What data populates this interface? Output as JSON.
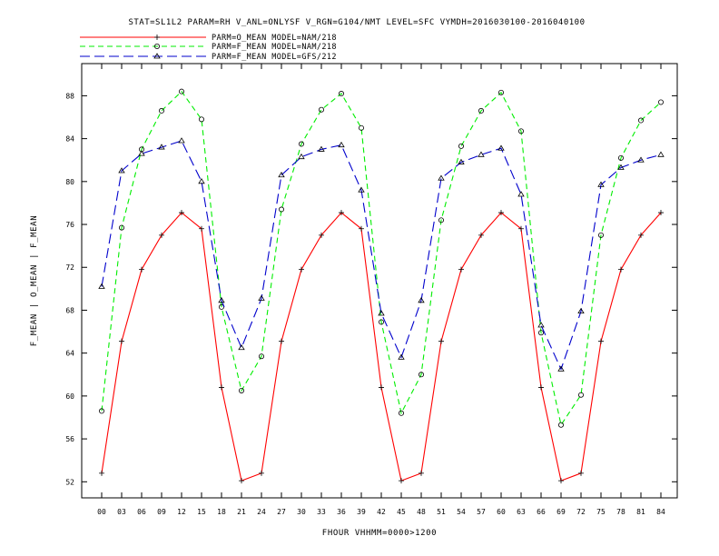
{
  "chart_data": {
    "type": "line",
    "title": "STAT=SL1L2 PARAM=RH V_ANL=ONLYSF V_RGN=G104/NMT LEVEL=SFC VYMDH=2016030100-2016040100",
    "xlabel": "FHOUR VHHMM=0000>1200",
    "ylabel": "F_MEAN | O_MEAN | F_MEAN",
    "x": [
      "00",
      "03",
      "06",
      "09",
      "12",
      "15",
      "18",
      "21",
      "24",
      "27",
      "30",
      "33",
      "36",
      "39",
      "42",
      "45",
      "48",
      "51",
      "54",
      "57",
      "60",
      "63",
      "66",
      "69",
      "72",
      "75",
      "78",
      "81",
      "84"
    ],
    "ylim": [
      50.5,
      91
    ],
    "yticks": [
      52,
      56,
      60,
      64,
      68,
      72,
      76,
      80,
      84,
      88
    ],
    "legend_position": "top-left",
    "grid": false,
    "series": [
      {
        "name": "PARM=O_MEAN MODEL=NAM/218",
        "color": "#ff0000",
        "dash": "solid",
        "marker": "plus",
        "values": [
          52.8,
          65.1,
          71.8,
          75.0,
          77.1,
          75.6,
          60.8,
          52.1,
          52.8,
          65.1,
          71.8,
          75.0,
          77.1,
          75.6,
          60.8,
          52.1,
          52.8,
          65.1,
          71.8,
          75.0,
          77.1,
          75.6,
          60.8,
          52.1,
          52.8,
          65.1,
          71.8,
          75.0,
          77.1
        ]
      },
      {
        "name": "PARM=F_MEAN MODEL=NAM/218",
        "color": "#00ee00",
        "dash": "dashed",
        "marker": "circle",
        "values": [
          58.6,
          75.7,
          83.0,
          86.6,
          88.4,
          85.8,
          68.3,
          60.5,
          63.7,
          77.4,
          83.5,
          86.7,
          88.2,
          85.0,
          66.9,
          58.4,
          62.0,
          76.4,
          83.3,
          86.6,
          88.3,
          84.7,
          65.9,
          57.3,
          60.1,
          75.0,
          82.2,
          85.7,
          87.4
        ]
      },
      {
        "name": "PARM=F_MEAN MODEL=GFS/212",
        "color": "#0000cc",
        "dash": "longdash",
        "marker": "triangle",
        "values": [
          70.2,
          81.0,
          82.6,
          83.2,
          83.8,
          80.0,
          68.9,
          64.5,
          69.1,
          80.6,
          82.3,
          83.0,
          83.4,
          79.2,
          67.7,
          63.6,
          68.9,
          80.3,
          81.8,
          82.5,
          83.1,
          78.8,
          66.6,
          62.5,
          67.9,
          79.7,
          81.3,
          82.0,
          82.5
        ]
      }
    ]
  }
}
